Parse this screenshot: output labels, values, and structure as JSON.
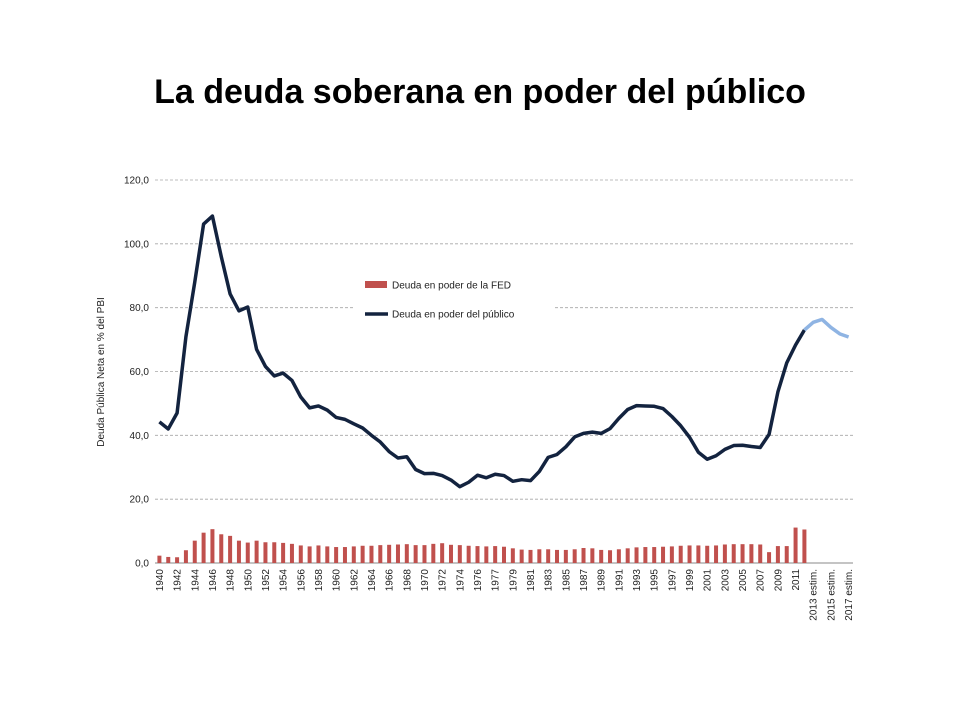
{
  "chart_data": {
    "type": "bar-line",
    "title": "La deuda soberana en poder del público",
    "y_label": "Deuda Pública Neta en % del PBI",
    "categories": [
      "1940",
      null,
      "1942",
      null,
      "1944",
      null,
      "1946",
      null,
      "1948",
      null,
      "1950",
      null,
      "1952",
      null,
      "1954",
      null,
      "1956",
      null,
      "1958",
      null,
      "1960",
      null,
      "1962",
      null,
      "1964",
      null,
      "1966",
      null,
      "1968",
      null,
      "1970",
      null,
      "1972",
      null,
      "1974",
      null,
      "1976",
      null,
      "1977",
      null,
      "1979",
      null,
      "1981",
      null,
      "1983",
      null,
      "1985",
      null,
      "1987",
      null,
      "1989",
      null,
      "1991",
      null,
      "1993",
      null,
      "1995",
      null,
      "1997",
      null,
      "1999",
      null,
      "2001",
      null,
      "2003",
      null,
      "2005",
      null,
      "2007",
      null,
      "2009",
      null,
      "2011",
      null,
      "2013 estim.",
      null,
      "2015 estim.",
      null,
      "2017 estim."
    ],
    "series": [
      {
        "name": "Deuda en poder de la FED",
        "kind": "bar",
        "color": "#c0504d",
        "values": [
          2.3,
          1.9,
          1.8,
          4.0,
          7.0,
          9.5,
          10.6,
          9.0,
          8.5,
          7.0,
          6.4,
          7.0,
          6.5,
          6.5,
          6.3,
          6.0,
          5.5,
          5.2,
          5.5,
          5.2,
          5.0,
          5.0,
          5.2,
          5.4,
          5.4,
          5.6,
          5.7,
          5.8,
          5.9,
          5.6,
          5.6,
          6.0,
          6.2,
          5.7,
          5.6,
          5.4,
          5.3,
          5.2,
          5.3,
          5.1,
          4.6,
          4.2,
          4.1,
          4.3,
          4.3,
          4.1,
          4.1,
          4.3,
          4.7,
          4.6,
          4.1,
          4.0,
          4.3,
          4.6,
          4.9,
          5.0,
          5.0,
          5.1,
          5.2,
          5.4,
          5.5,
          5.5,
          5.4,
          5.5,
          5.8,
          5.9,
          5.9,
          5.9,
          5.8,
          3.4,
          5.3,
          5.3,
          11.1,
          10.5,
          null,
          null,
          null,
          null,
          null
        ]
      },
      {
        "name": "Deuda en poder del público",
        "kind": "line",
        "color": "#13233f",
        "values": [
          44.2,
          42,
          47,
          70.9,
          88,
          106.2,
          108.7,
          96,
          84.3,
          79,
          80.2,
          66.9,
          61.6,
          58.6,
          59.5,
          57.2,
          52,
          48.6,
          49.2,
          47.9,
          45.6,
          45,
          43.6,
          42.3,
          40,
          37.9,
          34.9,
          32.9,
          33.3,
          29.3,
          28,
          28.1,
          27.4,
          26,
          23.9,
          25.3,
          27.5,
          26.7,
          27.8,
          27.4,
          25.6,
          26.1,
          25.8,
          28.7,
          33.1,
          34,
          36.4,
          39.5,
          40.6,
          41,
          40.6,
          42.1,
          45.3,
          48.1,
          49.3,
          49.2,
          49.1,
          48.4,
          45.9,
          43,
          39.4,
          34.7,
          32.5,
          33.6,
          35.6,
          36.8,
          36.9,
          36.5,
          36.2,
          40.3,
          53.6,
          62.7,
          68.3,
          73,
          null,
          null,
          null,
          null,
          null
        ]
      },
      {
        "kind": "line",
        "color": "#8fb4e3",
        "values": [
          null,
          null,
          null,
          null,
          null,
          null,
          null,
          null,
          null,
          null,
          null,
          null,
          null,
          null,
          null,
          null,
          null,
          null,
          null,
          null,
          null,
          null,
          null,
          null,
          null,
          null,
          null,
          null,
          null,
          null,
          null,
          null,
          null,
          null,
          null,
          null,
          null,
          null,
          null,
          null,
          null,
          null,
          null,
          null,
          null,
          null,
          null,
          null,
          null,
          null,
          null,
          null,
          null,
          null,
          null,
          null,
          null,
          null,
          null,
          null,
          null,
          null,
          null,
          null,
          null,
          null,
          null,
          null,
          null,
          null,
          null,
          null,
          null,
          73,
          75.4,
          76.3,
          73.8,
          71.8,
          70.8
        ]
      }
    ],
    "ylim": [
      0,
      120
    ],
    "yticks": [
      {
        "value": 0,
        "label": "0,0"
      },
      {
        "value": 20,
        "label": "20,0"
      },
      {
        "value": 40,
        "label": "40,0"
      },
      {
        "value": 60,
        "label": "60,0"
      },
      {
        "value": 80,
        "label": "80,0"
      },
      {
        "value": 100,
        "label": "100,0"
      },
      {
        "value": 120,
        "label": "120,0"
      }
    ],
    "grid": true
  }
}
